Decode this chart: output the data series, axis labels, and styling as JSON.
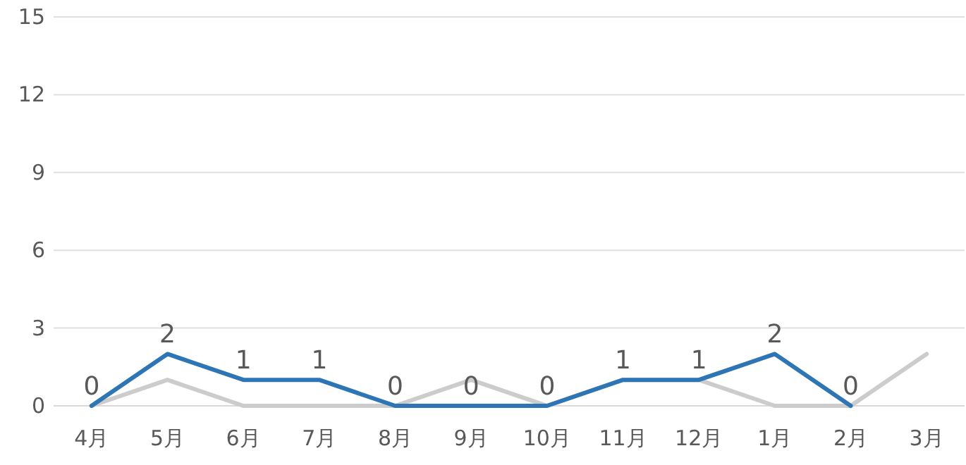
{
  "chart_data": {
    "type": "line",
    "categories": [
      "4月",
      "5月",
      "6月",
      "7月",
      "8月",
      "9月",
      "10月",
      "11月",
      "12月",
      "1月",
      "2月",
      "3月"
    ],
    "series": [
      {
        "color": "#cccccc",
        "values": [
          0,
          1,
          0,
          0,
          0,
          1,
          0,
          1,
          1,
          0,
          0,
          2
        ]
      },
      {
        "color": "#2e75b6",
        "values": [
          0,
          2,
          1,
          1,
          0,
          0,
          0,
          1,
          1,
          2,
          0,
          null
        ],
        "value_labels": [
          "0",
          "2",
          "1",
          "1",
          "0",
          "0",
          "0",
          "1",
          "1",
          "2",
          "0",
          null
        ]
      }
    ],
    "ylim": [
      0,
      15
    ],
    "yticks": [
      0,
      3,
      6,
      9,
      12,
      15
    ],
    "grid": "y",
    "marker": "none",
    "line_style": "solid"
  }
}
